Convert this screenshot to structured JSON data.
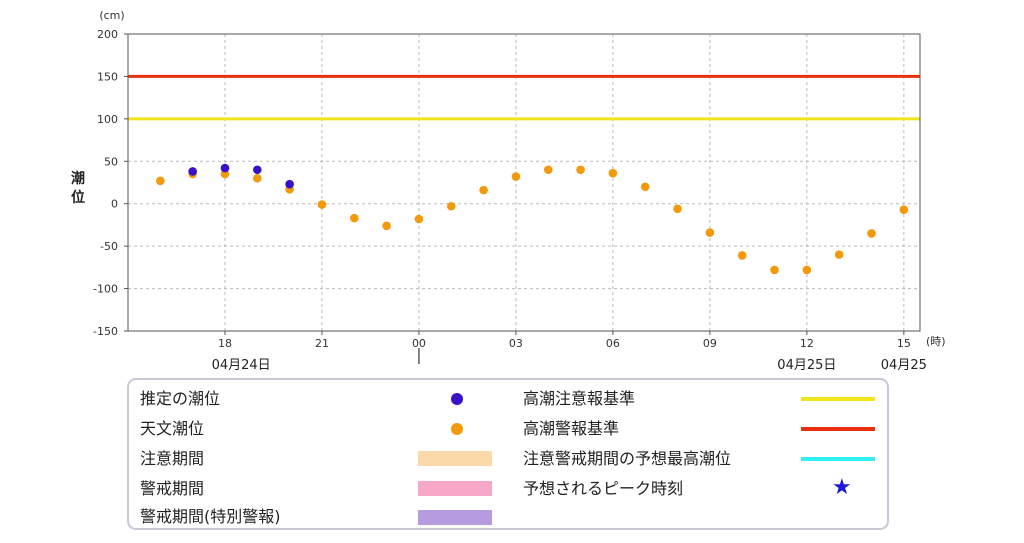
{
  "chart_data": {
    "type": "scatter",
    "y_unit": "(cm)",
    "x_unit": "(時)",
    "ylabel": "潮位",
    "ylim": [
      -150,
      200
    ],
    "y_ticks": [
      200,
      150,
      100,
      50,
      0,
      -50,
      -100,
      -150
    ],
    "x_range_hours": [
      15,
      39.5
    ],
    "x_ticks": [
      {
        "hour": 18,
        "label": "18"
      },
      {
        "hour": 21,
        "label": "21"
      },
      {
        "hour": 24,
        "label": "00"
      },
      {
        "hour": 27,
        "label": "03"
      },
      {
        "hour": 30,
        "label": "06"
      },
      {
        "hour": 33,
        "label": "09"
      },
      {
        "hour": 36,
        "label": "12"
      },
      {
        "hour": 39,
        "label": "15"
      }
    ],
    "date_labels": [
      {
        "hour": 18.5,
        "label": "04月24日"
      },
      {
        "hour": 36,
        "label": "04月25日"
      },
      {
        "hour": 39,
        "label": "04月25"
      }
    ],
    "current_time_hour": 24,
    "thresholds": [
      {
        "name": "高潮警報基準",
        "value": 150,
        "color": "#e8300e"
      },
      {
        "name": "高潮注意報基準",
        "value": 100,
        "color": "#f0e41a"
      }
    ],
    "series": [
      {
        "name": "天文潮位",
        "color": "#f39a0c",
        "points": [
          [
            16,
            27
          ],
          [
            17,
            35
          ],
          [
            18,
            35
          ],
          [
            19,
            30
          ],
          [
            20,
            17
          ],
          [
            21,
            -1
          ],
          [
            22,
            -17
          ],
          [
            23,
            -26
          ],
          [
            24,
            -18
          ],
          [
            25,
            -3
          ],
          [
            26,
            16
          ],
          [
            27,
            32
          ],
          [
            28,
            40
          ],
          [
            29,
            40
          ],
          [
            30,
            36
          ],
          [
            31,
            20
          ],
          [
            32,
            -6
          ],
          [
            33,
            -34
          ],
          [
            34,
            -61
          ],
          [
            35,
            -78
          ],
          [
            36,
            -78
          ],
          [
            37,
            -60
          ],
          [
            38,
            -35
          ],
          [
            39,
            -7
          ]
        ]
      },
      {
        "name": "推定の潮位",
        "color": "#3a10c8",
        "points": [
          [
            17,
            38
          ],
          [
            18,
            42
          ],
          [
            19,
            40
          ],
          [
            20,
            23
          ]
        ]
      }
    ]
  },
  "legend": {
    "estimated": {
      "label": "推定の潮位",
      "color": "#3a10c8"
    },
    "astronomical": {
      "label": "天文潮位",
      "color": "#f39a0c"
    },
    "caution_period": {
      "label": "注意期間",
      "color": "#fcd9a8"
    },
    "warning_period": {
      "label": "警戒期間",
      "color": "#f7a8c8"
    },
    "special_warning_period": {
      "label": "警戒期間(特別警報)",
      "color": "#b79be0"
    },
    "caution_standard": {
      "label": "高潮注意報基準",
      "color": "#f0e41a"
    },
    "warning_standard": {
      "label": "高潮警報基準",
      "color": "#e8300e"
    },
    "max_tide": {
      "label": "注意警戒期間の予想最高潮位",
      "color": "#2ef0f5"
    },
    "peak_time": {
      "label": "予想されるピーク時刻",
      "color": "#1a1ad6"
    }
  }
}
